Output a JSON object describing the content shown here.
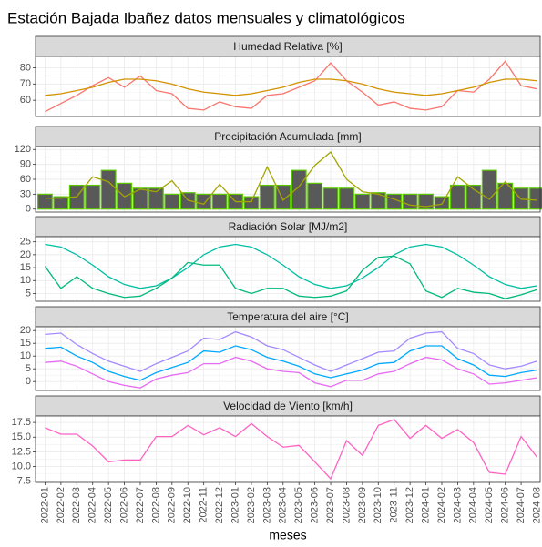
{
  "title": "Estación Bajada Ibañez datos mensuales y climatológicos",
  "x_label": "meses",
  "x": [
    "2022-01",
    "2022-02",
    "2022-03",
    "2022-04",
    "2022-05",
    "2022-06",
    "2022-07",
    "2022-08",
    "2022-09",
    "2022-10",
    "2022-11",
    "2022-12",
    "2023-01",
    "2023-02",
    "2023-03",
    "2023-04",
    "2023-05",
    "2023-06",
    "2023-07",
    "2023-08",
    "2023-09",
    "2023-10",
    "2023-11",
    "2023-12",
    "2024-01",
    "2024-02",
    "2024-03",
    "2024-04",
    "2024-05",
    "2024-06",
    "2024-07",
    "2024-08"
  ],
  "chart_data": [
    {
      "type": "line",
      "title": "Humedad Relativa [%]",
      "ylim": [
        50,
        87
      ],
      "yticks": [
        60,
        70,
        80
      ],
      "grid": true,
      "series": [
        {
          "type": "line",
          "color": "#F8766D",
          "values": [
            53,
            58,
            63,
            69,
            74,
            68,
            75,
            66,
            64,
            55,
            54,
            59,
            56,
            55,
            63,
            64,
            68,
            72,
            83,
            72,
            65,
            57,
            59,
            55,
            54,
            56,
            66,
            65,
            73,
            84,
            69,
            67
          ]
        },
        {
          "type": "line",
          "color": "#D39200",
          "values": [
            63,
            64,
            66,
            68,
            71,
            73,
            73,
            72,
            70,
            67,
            65,
            64,
            63,
            64,
            66,
            68,
            71,
            73,
            73,
            72,
            70,
            67,
            65,
            64,
            63,
            64,
            66,
            68,
            71,
            73,
            73,
            72
          ]
        }
      ]
    },
    {
      "type": "combo",
      "title": "Precipitación Acumulada [mm]",
      "ylim": [
        -6,
        126
      ],
      "yticks": [
        0,
        30,
        60,
        90,
        120
      ],
      "grid": true,
      "series": [
        {
          "type": "bar",
          "color": "#595959",
          "edgecolor": "#5BC800",
          "values": [
            30,
            25,
            48,
            48,
            78,
            52,
            42,
            42,
            30,
            33,
            30,
            30,
            30,
            25,
            48,
            48,
            78,
            52,
            42,
            42,
            30,
            33,
            30,
            30,
            30,
            25,
            48,
            48,
            78,
            52,
            42,
            42
          ]
        },
        {
          "type": "line",
          "color": "#A3A500",
          "values": [
            22,
            22,
            25,
            65,
            55,
            25,
            40,
            35,
            57,
            18,
            10,
            50,
            15,
            15,
            85,
            18,
            45,
            88,
            115,
            60,
            35,
            30,
            20,
            8,
            5,
            10,
            65,
            40,
            20,
            55,
            20,
            18
          ]
        }
      ]
    },
    {
      "type": "line",
      "title": "Radiación Solar [MJ/m2]",
      "ylim": [
        2,
        27
      ],
      "yticks": [
        5,
        10,
        15,
        20,
        25
      ],
      "grid": true,
      "series": [
        {
          "type": "line",
          "color": "#00BFA4",
          "values": [
            24,
            23,
            20,
            16,
            11.5,
            8.5,
            7,
            8,
            11,
            15,
            20,
            23,
            24,
            23,
            20,
            16,
            11.5,
            8.5,
            7,
            8,
            11,
            15,
            20,
            23,
            24,
            23,
            20,
            16,
            11.5,
            8.5,
            7,
            8
          ]
        },
        {
          "type": "line",
          "color": "#00BA7A",
          "values": [
            15.5,
            7,
            11.5,
            7,
            5,
            3.5,
            4,
            7,
            11,
            17,
            16,
            16,
            7,
            5,
            7,
            7,
            4,
            3.5,
            4,
            6,
            14,
            19,
            19.5,
            16.5,
            6,
            3.5,
            7,
            5.5,
            5,
            3,
            4.5,
            6.5
          ]
        }
      ]
    },
    {
      "type": "line",
      "title": "Temperatura del aire [°C]",
      "ylim": [
        -3.5,
        21.5
      ],
      "yticks": [
        0,
        5,
        10,
        15,
        20
      ],
      "grid": true,
      "series": [
        {
          "type": "line",
          "color": "#A58AFF",
          "values": [
            18.5,
            19,
            14.5,
            11,
            8,
            6,
            4,
            7,
            9.5,
            12,
            17,
            16.5,
            19.5,
            17.5,
            14,
            12.5,
            9.5,
            6.5,
            4,
            6.5,
            9,
            11.5,
            12,
            17,
            19,
            19.5,
            13,
            11,
            6.5,
            5,
            6,
            8
          ]
        },
        {
          "type": "line",
          "color": "#00A9FF",
          "values": [
            13,
            13.5,
            10,
            7.5,
            4,
            2,
            0.5,
            3.5,
            5.5,
            7.5,
            12,
            11.5,
            14,
            12.5,
            9.5,
            8,
            6,
            3,
            1.5,
            3,
            4.5,
            7,
            7.5,
            12,
            14,
            14,
            9,
            6.5,
            2.5,
            2,
            3.5,
            4.5
          ]
        },
        {
          "type": "line",
          "color": "#E76BF3",
          "values": [
            7.5,
            8,
            6,
            3,
            0,
            -1.5,
            -2.5,
            1,
            2.5,
            3.5,
            7,
            7,
            9.5,
            8,
            5,
            4,
            3.5,
            -0.5,
            -2,
            0.5,
            0.5,
            3,
            4,
            7,
            9.5,
            8.5,
            5,
            3,
            -1,
            -0.5,
            0.5,
            1.5
          ]
        }
      ]
    },
    {
      "type": "line",
      "title": "Velocidad de Viento [km/h]",
      "ylim": [
        7.3,
        18.6
      ],
      "yticks": [
        7.5,
        {
          "value": 10,
          "label": "10.0"
        },
        12.5,
        {
          "value": 15,
          "label": "15.0"
        },
        17.5
      ],
      "grid": true,
      "series": [
        {
          "type": "line",
          "color": "#FF61C3",
          "values": [
            16.6,
            15.5,
            15.5,
            13.5,
            10.8,
            11.1,
            11.1,
            15.1,
            15.1,
            17.0,
            15.4,
            16.6,
            15.1,
            17.3,
            15.1,
            13.3,
            13.6,
            10.8,
            7.9,
            14.4,
            11.9,
            17.0,
            18.0,
            14.8,
            17.0,
            14.8,
            16.3,
            14.1,
            9.0,
            8.7,
            15.1,
            11.6
          ]
        }
      ]
    }
  ]
}
